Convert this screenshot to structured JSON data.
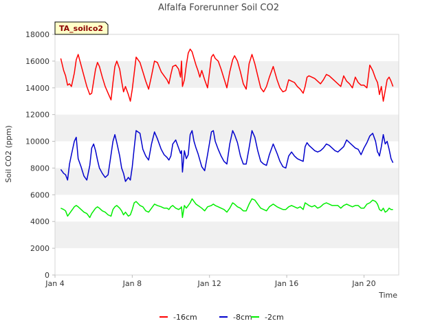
{
  "chart_data": {
    "type": "line",
    "title": "Alfalfa Forerunner Soil CO2",
    "xlabel": "Time",
    "ylabel": "Soil CO2 (ppm)",
    "tag": "TA_soilco2",
    "xlim": [
      4.0,
      21.8
    ],
    "ylim": [
      0,
      18000
    ],
    "yticks": [
      0,
      2000,
      4000,
      6000,
      8000,
      10000,
      12000,
      14000,
      16000,
      18000
    ],
    "xticks": [
      {
        "value": 4,
        "label": "Jan 4"
      },
      {
        "value": 8,
        "label": "Jan 8"
      },
      {
        "value": 12,
        "label": "Jan 12"
      },
      {
        "value": 16,
        "label": "Jan 16"
      },
      {
        "value": 20,
        "label": "Jan 20"
      }
    ],
    "grid_bands": true,
    "legend_position": "bottom-center",
    "series": [
      {
        "name": "-16cm",
        "color": "#ff0000",
        "x": [
          4.3,
          4.45,
          4.55,
          4.65,
          4.75,
          4.85,
          5.0,
          5.1,
          5.2,
          5.35,
          5.5,
          5.65,
          5.8,
          5.9,
          6.0,
          6.1,
          6.2,
          6.3,
          6.45,
          6.6,
          6.75,
          6.9,
          7.0,
          7.1,
          7.2,
          7.35,
          7.45,
          7.55,
          7.65,
          7.8,
          7.9,
          8.0,
          8.1,
          8.2,
          8.4,
          8.55,
          8.7,
          8.85,
          9.0,
          9.15,
          9.3,
          9.5,
          9.65,
          9.8,
          9.9,
          10.0,
          10.1,
          10.25,
          10.4,
          10.5,
          10.55,
          10.6,
          10.7,
          10.8,
          10.9,
          11.0,
          11.1,
          11.2,
          11.3,
          11.4,
          11.5,
          11.6,
          11.75,
          11.9,
          12.1,
          12.2,
          12.3,
          12.45,
          12.6,
          12.75,
          12.9,
          13.05,
          13.2,
          13.3,
          13.45,
          13.6,
          13.75,
          13.9,
          14.05,
          14.2,
          14.35,
          14.5,
          14.65,
          14.8,
          14.95,
          15.1,
          15.3,
          15.5,
          15.65,
          15.8,
          15.95,
          16.1,
          16.25,
          16.4,
          16.55,
          16.7,
          16.85,
          16.95,
          17.05,
          17.15,
          17.3,
          17.45,
          17.6,
          17.75,
          17.9,
          18.05,
          18.2,
          18.35,
          18.5,
          18.65,
          18.8,
          18.95,
          19.1,
          19.25,
          19.4,
          19.55,
          19.7,
          19.85,
          20.0,
          20.15,
          20.3,
          20.45,
          20.6,
          20.7,
          20.75,
          20.8,
          20.9,
          21.0,
          21.1,
          21.2,
          21.3,
          21.4,
          21.5
        ],
        "values": [
          16200,
          15300,
          14900,
          14200,
          14300,
          14100,
          15100,
          16100,
          16500,
          15700,
          14900,
          14100,
          13500,
          13600,
          14500,
          15400,
          15900,
          15600,
          14800,
          14100,
          13600,
          13100,
          14400,
          15600,
          16000,
          15400,
          14500,
          13700,
          14100,
          13500,
          13000,
          13900,
          15100,
          16300,
          15900,
          15200,
          14500,
          13900,
          14900,
          16000,
          15900,
          15200,
          14900,
          14600,
          14300,
          15000,
          15600,
          15700,
          15400,
          14800,
          16000,
          14100,
          14600,
          15700,
          16600,
          16900,
          16700,
          16200,
          15700,
          15300,
          14800,
          15300,
          14600,
          14000,
          16300,
          16500,
          16200,
          16000,
          15400,
          14700,
          14000,
          15200,
          16100,
          16400,
          16000,
          15200,
          14300,
          13900,
          15800,
          16500,
          15800,
          14900,
          14000,
          13700,
          14100,
          14800,
          15600,
          14600,
          14000,
          13700,
          13800,
          14600,
          14500,
          14400,
          14100,
          13900,
          13600,
          14100,
          14800,
          14900,
          14800,
          14700,
          14500,
          14300,
          14600,
          15000,
          14900,
          14700,
          14500,
          14300,
          14100,
          14900,
          14500,
          14300,
          14000,
          14800,
          14400,
          14200,
          14200,
          14000,
          15700,
          15300,
          14700,
          14400,
          14000,
          13500,
          14100,
          13000,
          13800,
          14600,
          14800,
          14500,
          14100
        ]
      },
      {
        "name": "-8cm",
        "color": "#0000cc",
        "x": [
          4.3,
          4.45,
          4.55,
          4.65,
          4.75,
          4.85,
          5.0,
          5.1,
          5.2,
          5.35,
          5.5,
          5.65,
          5.8,
          5.9,
          6.0,
          6.1,
          6.2,
          6.3,
          6.45,
          6.6,
          6.75,
          6.9,
          7.0,
          7.1,
          7.2,
          7.35,
          7.45,
          7.55,
          7.65,
          7.8,
          7.9,
          8.0,
          8.1,
          8.2,
          8.4,
          8.55,
          8.7,
          8.85,
          9.0,
          9.15,
          9.3,
          9.5,
          9.65,
          9.8,
          9.9,
          10.0,
          10.1,
          10.25,
          10.4,
          10.5,
          10.55,
          10.6,
          10.7,
          10.8,
          10.9,
          11.0,
          11.1,
          11.2,
          11.3,
          11.4,
          11.5,
          11.6,
          11.75,
          11.9,
          12.1,
          12.2,
          12.3,
          12.45,
          12.6,
          12.75,
          12.9,
          13.05,
          13.2,
          13.3,
          13.45,
          13.6,
          13.75,
          13.9,
          14.05,
          14.2,
          14.35,
          14.5,
          14.65,
          14.8,
          14.95,
          15.1,
          15.3,
          15.5,
          15.65,
          15.8,
          15.95,
          16.1,
          16.25,
          16.4,
          16.55,
          16.7,
          16.85,
          16.95,
          17.05,
          17.15,
          17.3,
          17.45,
          17.6,
          17.75,
          17.9,
          18.05,
          18.2,
          18.35,
          18.5,
          18.65,
          18.8,
          18.95,
          19.1,
          19.25,
          19.4,
          19.55,
          19.7,
          19.85,
          20.0,
          20.15,
          20.3,
          20.45,
          20.6,
          20.7,
          20.75,
          20.8,
          20.9,
          21.0,
          21.1,
          21.2,
          21.3,
          21.4,
          21.5
        ],
        "values": [
          7900,
          7600,
          7500,
          7100,
          8300,
          9000,
          10000,
          10300,
          8700,
          8100,
          7400,
          7100,
          8200,
          9500,
          9800,
          9300,
          8600,
          8000,
          7600,
          7300,
          7500,
          9000,
          10000,
          10500,
          9900,
          8900,
          8000,
          7600,
          7000,
          7300,
          7100,
          8100,
          9500,
          10800,
          10600,
          9400,
          8900,
          8600,
          9800,
          10700,
          10200,
          9400,
          9000,
          8800,
          8600,
          8900,
          9800,
          10100,
          9500,
          9100,
          9300,
          7700,
          9300,
          8700,
          9000,
          10500,
          10800,
          10000,
          9500,
          9100,
          8600,
          8100,
          7800,
          9000,
          10700,
          10800,
          10000,
          9400,
          8900,
          8500,
          8300,
          9800,
          10800,
          10500,
          9900,
          8900,
          8300,
          8300,
          9500,
          10800,
          10300,
          9300,
          8500,
          8300,
          8200,
          9000,
          9800,
          9100,
          8500,
          8100,
          8000,
          8900,
          9200,
          8900,
          8700,
          8600,
          8500,
          9600,
          9900,
          9700,
          9500,
          9300,
          9200,
          9300,
          9500,
          9800,
          9700,
          9500,
          9300,
          9200,
          9400,
          9600,
          10100,
          9900,
          9700,
          9500,
          9400,
          9000,
          9500,
          9900,
          10400,
          10600,
          10000,
          9200,
          9100,
          8900,
          9600,
          10500,
          9800,
          10000,
          9400,
          8700,
          8400
        ]
      },
      {
        "name": "-2cm",
        "color": "#00ee00",
        "x": [
          4.3,
          4.45,
          4.55,
          4.65,
          4.75,
          4.85,
          5.0,
          5.1,
          5.2,
          5.35,
          5.5,
          5.65,
          5.8,
          5.9,
          6.0,
          6.1,
          6.2,
          6.3,
          6.45,
          6.6,
          6.75,
          6.9,
          7.0,
          7.1,
          7.2,
          7.35,
          7.45,
          7.55,
          7.65,
          7.8,
          7.9,
          8.0,
          8.1,
          8.2,
          8.4,
          8.55,
          8.7,
          8.85,
          9.0,
          9.15,
          9.3,
          9.5,
          9.65,
          9.8,
          9.9,
          10.0,
          10.1,
          10.25,
          10.4,
          10.5,
          10.55,
          10.6,
          10.7,
          10.8,
          10.9,
          11.0,
          11.1,
          11.2,
          11.3,
          11.4,
          11.5,
          11.6,
          11.75,
          11.9,
          12.1,
          12.2,
          12.3,
          12.45,
          12.6,
          12.75,
          12.9,
          13.05,
          13.2,
          13.3,
          13.45,
          13.6,
          13.75,
          13.9,
          14.05,
          14.2,
          14.35,
          14.5,
          14.65,
          14.8,
          14.95,
          15.1,
          15.3,
          15.5,
          15.65,
          15.8,
          15.95,
          16.1,
          16.25,
          16.4,
          16.55,
          16.7,
          16.85,
          16.95,
          17.05,
          17.15,
          17.3,
          17.45,
          17.6,
          17.75,
          17.9,
          18.05,
          18.2,
          18.35,
          18.5,
          18.65,
          18.8,
          18.95,
          19.1,
          19.25,
          19.4,
          19.55,
          19.7,
          19.85,
          20.0,
          20.15,
          20.3,
          20.45,
          20.6,
          20.7,
          20.75,
          20.8,
          20.9,
          21.0,
          21.1,
          21.2,
          21.3,
          21.4,
          21.5
        ],
        "values": [
          5000,
          4900,
          4800,
          4400,
          4600,
          4800,
          5100,
          5200,
          5100,
          4900,
          4700,
          4600,
          4300,
          4600,
          4800,
          5000,
          5100,
          5000,
          4800,
          4700,
          4500,
          4400,
          4900,
          5100,
          5200,
          5000,
          4800,
          4500,
          4700,
          4400,
          4500,
          4900,
          5400,
          5500,
          5200,
          5100,
          4800,
          4700,
          5000,
          5300,
          5200,
          5100,
          5000,
          5000,
          4900,
          5100,
          5200,
          5000,
          4900,
          5000,
          5100,
          4300,
          5200,
          5000,
          5200,
          5400,
          5700,
          5500,
          5300,
          5200,
          5100,
          5000,
          4800,
          5100,
          5200,
          5300,
          5200,
          5100,
          5000,
          4900,
          4700,
          5000,
          5400,
          5300,
          5100,
          5000,
          4800,
          4800,
          5300,
          5700,
          5600,
          5300,
          5000,
          4900,
          4800,
          5100,
          5300,
          5100,
          5000,
          4900,
          4900,
          5100,
          5200,
          5100,
          5000,
          5100,
          4900,
          5400,
          5300,
          5200,
          5100,
          5200,
          5000,
          5100,
          5300,
          5400,
          5300,
          5200,
          5200,
          5200,
          5000,
          5200,
          5300,
          5200,
          5100,
          5200,
          5200,
          5000,
          5000,
          5300,
          5400,
          5600,
          5500,
          5300,
          5100,
          4900,
          4800,
          5000,
          4700,
          4800,
          5000,
          4900,
          4900
        ]
      }
    ]
  }
}
